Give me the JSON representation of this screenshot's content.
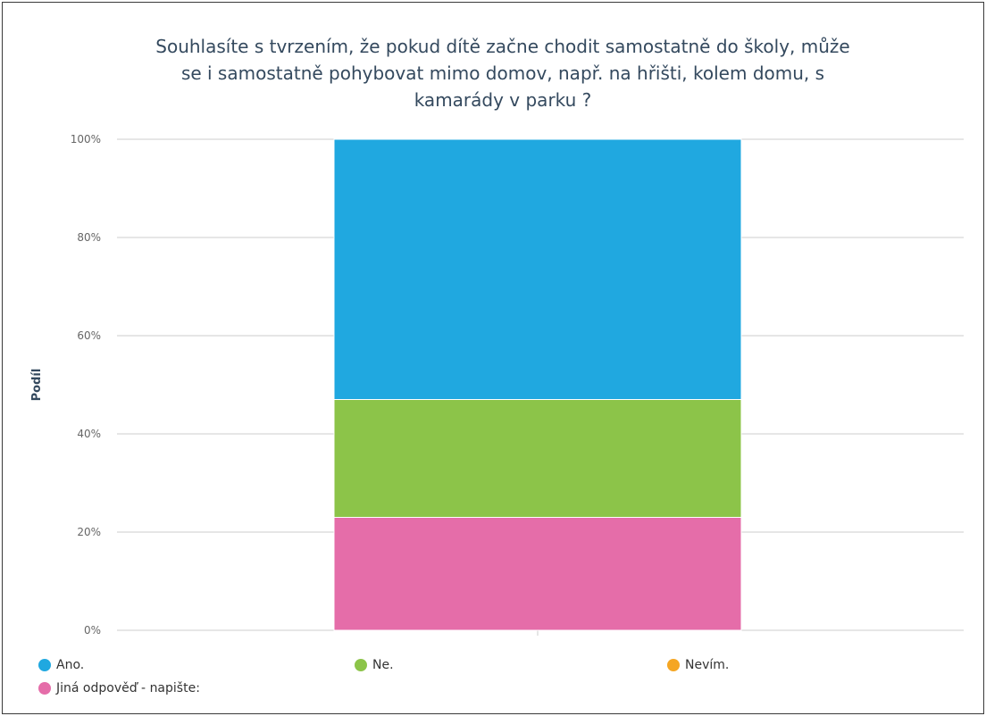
{
  "colors": {
    "ano": "#20a8e0",
    "ne": "#8cc449",
    "nevim": "#f5a623",
    "jina": "#e56da9",
    "grid": "#cccccc",
    "axis_title": "#34495e"
  },
  "chart_data": {
    "type": "bar",
    "stacked": true,
    "title_lines": [
      "Souhlasíte s tvrzením, že pokud dítě začne chodit samostatně do školy, může",
      "se i samostatně pohybovat mimo domov, např. na hřišti, kolem domu, s",
      "kamarády v parku ?"
    ],
    "ylabel": "Podíl",
    "ylim": [
      0,
      100
    ],
    "yticks": [
      "0%",
      "20%",
      "40%",
      "60%",
      "80%",
      "100%"
    ],
    "grid": true,
    "legend_position": "bottom",
    "series": [
      {
        "name": "Jiná odpověď - napište:",
        "color_key": "jina",
        "value": 23
      },
      {
        "name": "Nevím.",
        "color_key": "nevim",
        "value": 0
      },
      {
        "name": "Ne.",
        "color_key": "ne",
        "value": 24
      },
      {
        "name": "Ano.",
        "color_key": "ano",
        "value": 53
      }
    ]
  },
  "legend": {
    "items": [
      {
        "label": "Ano.",
        "color_key": "ano"
      },
      {
        "label": "Ne.",
        "color_key": "ne"
      },
      {
        "label": "Nevím.",
        "color_key": "nevim"
      },
      {
        "label": "Jiná odpověď - napište:",
        "color_key": "jina"
      }
    ]
  }
}
